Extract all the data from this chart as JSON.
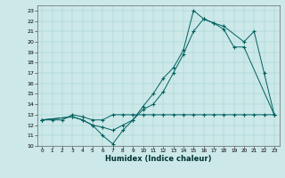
{
  "xlabel": "Humidex (Indice chaleur)",
  "background_color": "#cce8e8",
  "line_color": "#006060",
  "xlim": [
    -0.5,
    23.5
  ],
  "ylim": [
    10,
    23.5
  ],
  "xticks": [
    0,
    1,
    2,
    3,
    4,
    5,
    6,
    7,
    8,
    9,
    10,
    11,
    12,
    13,
    14,
    15,
    16,
    17,
    18,
    19,
    20,
    21,
    22,
    23
  ],
  "yticks": [
    10,
    11,
    12,
    13,
    14,
    15,
    16,
    17,
    18,
    19,
    20,
    21,
    22,
    23
  ],
  "line1_x": [
    0,
    1,
    2,
    3,
    4,
    5,
    6,
    7,
    8,
    9,
    10,
    11,
    12,
    13,
    14,
    15,
    16,
    17,
    18,
    19,
    20,
    21,
    22,
    23
  ],
  "line1_y": [
    12.5,
    12.5,
    12.5,
    13.0,
    12.8,
    12.5,
    12.5,
    13.0,
    13.0,
    13.0,
    13.0,
    13.0,
    13.0,
    13.0,
    13.0,
    13.0,
    13.0,
    13.0,
    13.0,
    13.0,
    13.0,
    13.0,
    13.0,
    13.0
  ],
  "line2_x": [
    0,
    3,
    4,
    5,
    6,
    7,
    8,
    9,
    10,
    11,
    12,
    13,
    14,
    15,
    16,
    17,
    18,
    19,
    20,
    23
  ],
  "line2_y": [
    12.5,
    12.8,
    12.5,
    12.0,
    11.0,
    10.2,
    11.5,
    12.5,
    13.5,
    14.0,
    15.2,
    17.0,
    18.8,
    21.0,
    22.2,
    21.8,
    21.2,
    19.5,
    19.5,
    13.0
  ],
  "line3_x": [
    0,
    3,
    4,
    5,
    6,
    7,
    8,
    9,
    10,
    11,
    12,
    13,
    14,
    15,
    16,
    17,
    18,
    20,
    21,
    22,
    23
  ],
  "line3_y": [
    12.5,
    12.8,
    12.5,
    12.0,
    11.8,
    11.5,
    12.0,
    12.5,
    13.8,
    15.0,
    16.5,
    17.5,
    19.2,
    23.0,
    22.2,
    21.8,
    21.5,
    20.0,
    21.0,
    17.0,
    13.0
  ]
}
